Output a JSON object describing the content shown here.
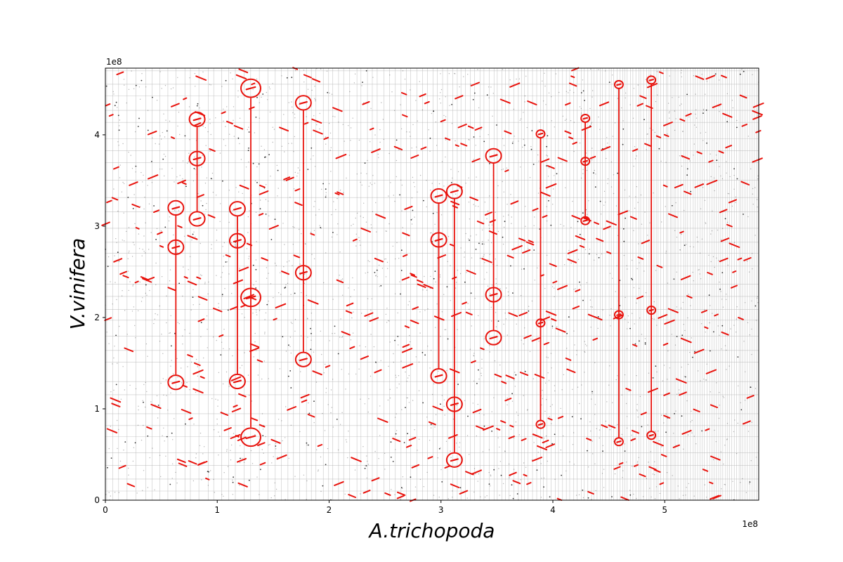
{
  "chart_data": {
    "type": "scatter",
    "title": "",
    "xlabel": "A.trichopoda",
    "ylabel": "V.vinifera",
    "x_offset_text": "1e8",
    "y_offset_text": "1e8",
    "xlim": [
      0,
      5.84
    ],
    "ylim": [
      0,
      4.73
    ],
    "x_ticks": [
      0,
      1,
      2,
      3,
      4,
      5
    ],
    "y_ticks": [
      0,
      1,
      2,
      3,
      4
    ],
    "x_tick_labels": [
      "0",
      "1",
      "2",
      "3",
      "4",
      "5"
    ],
    "y_tick_labels": [
      "0",
      "1",
      "2",
      "3",
      "4"
    ],
    "grid": true,
    "colors": {
      "highlight": "#e8120c",
      "points": "#000000",
      "grid": "#b0b0b0"
    },
    "highlight_groups": [
      {
        "x": 0.63,
        "y": [
          3.2,
          2.77,
          1.29
        ]
      },
      {
        "x": 0.82,
        "y": [
          4.17,
          3.74,
          3.08
        ]
      },
      {
        "x": 1.18,
        "y": [
          3.19,
          2.84,
          1.3
        ]
      },
      {
        "x": 1.3,
        "y": [
          4.51,
          2.22,
          0.69
        ]
      },
      {
        "x": 1.77,
        "y": [
          4.35,
          2.49,
          1.54
        ]
      },
      {
        "x": 2.98,
        "y": [
          3.33,
          2.85,
          1.36
        ]
      },
      {
        "x": 3.12,
        "y": [
          3.38,
          1.05,
          0.44
        ]
      },
      {
        "x": 3.47,
        "y": [
          3.77,
          2.25,
          1.78
        ]
      },
      {
        "x": 3.89,
        "y": [
          4.01,
          1.94,
          0.83
        ]
      },
      {
        "x": 4.29,
        "y": [
          4.18,
          3.71,
          3.06
        ]
      },
      {
        "x": 4.59,
        "y": [
          4.55,
          2.03,
          0.64
        ]
      },
      {
        "x": 4.88,
        "y": [
          4.6,
          2.08,
          0.71
        ]
      }
    ]
  }
}
